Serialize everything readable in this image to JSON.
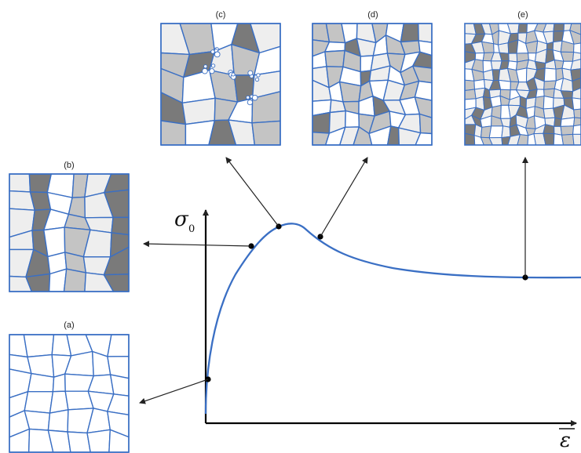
{
  "axes": {
    "y_symbol": "σ",
    "y_subscript": "0",
    "x_symbol": "ε"
  },
  "panels": [
    {
      "id": "a",
      "label": "(a)",
      "shades": [
        0,
        0,
        0,
        0,
        0,
        0,
        0,
        0,
        0
      ]
    },
    {
      "id": "b",
      "label": "(b)",
      "shades": [
        1,
        2,
        3,
        0,
        3,
        1,
        2,
        0,
        3
      ]
    },
    {
      "id": "c",
      "label": "(c)",
      "shades": [
        1,
        3,
        2,
        0,
        2,
        1,
        3,
        0,
        2
      ]
    },
    {
      "id": "d",
      "label": "(d)",
      "shades": [
        2,
        0,
        1,
        3,
        0,
        2,
        1,
        0,
        2
      ]
    },
    {
      "id": "e",
      "label": "(e)",
      "shades": [
        1,
        2,
        0,
        3,
        1,
        0,
        2,
        1,
        3
      ]
    }
  ],
  "colors": {
    "curve": "#3a6fc4",
    "grain_edge": "#3a6fc4",
    "axis": "#000000",
    "arrow": "#222222",
    "shade_0": "#ffffff",
    "shade_1": "#eeeeee",
    "shade_2": "#c4c4c4",
    "shade_3": "#7a7a7a"
  }
}
